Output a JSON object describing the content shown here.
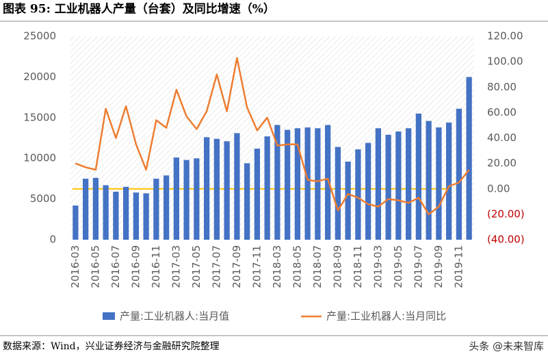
{
  "chart_data": {
    "type": "bar-line",
    "title": "图表 95: 工业机器人产量（台套）及同比增速（%）",
    "source": "数据来源：Wind，兴业证券经济与金融研究院整理",
    "watermark": "头条 @未来智库",
    "categories": [
      "2016-03",
      null,
      "2016-05",
      null,
      "2016-07",
      null,
      "2016-09",
      null,
      "2016-11",
      null,
      "2017-03",
      null,
      "2017-05",
      null,
      "2017-07",
      null,
      "2017-09",
      null,
      "2017-11",
      null,
      "2018-03",
      null,
      "2018-05",
      null,
      "2018-07",
      null,
      "2018-09",
      null,
      "2018-11",
      null,
      "2019-03",
      null,
      "2019-05",
      null,
      "2019-07",
      null,
      "2019-09",
      null,
      "2019-11",
      null
    ],
    "series": [
      {
        "name": "产量:工业机器人:当月值",
        "color": "#4472c4",
        "type": "bar",
        "axis": "y",
        "values": [
          4200,
          7500,
          7600,
          6700,
          5900,
          6500,
          5800,
          5700,
          7500,
          7900,
          10100,
          9800,
          10000,
          12600,
          12400,
          12100,
          13100,
          9400,
          11200,
          12700,
          14100,
          13500,
          13700,
          13800,
          13700,
          14100,
          11400,
          9600,
          11100,
          11900,
          13700,
          12900,
          13300,
          13700,
          15500,
          14600,
          13800,
          14400,
          16100,
          20000
        ]
      },
      {
        "name": "产量:工业机器人:当月同比",
        "color": "#ed7d31",
        "type": "line",
        "axis": "y2",
        "values": [
          20,
          17,
          15,
          63,
          40,
          65,
          35,
          15,
          54,
          48,
          78,
          57,
          47,
          61,
          90,
          61,
          103,
          64,
          46,
          56,
          34,
          35,
          35,
          7,
          6,
          8,
          -17,
          -4,
          -7,
          -12,
          -14,
          -8,
          -9,
          -11,
          -7,
          -20,
          -14,
          2,
          5,
          15
        ]
      }
    ],
    "ylim": [
      0,
      25000
    ],
    "yticks": [
      0,
      5000,
      10000,
      15000,
      20000,
      25000
    ],
    "y2lim": [
      -40,
      120
    ],
    "y2ticks": [
      {
        "value": -40,
        "label": "(40.00)"
      },
      {
        "value": -20,
        "label": "(20.00)"
      },
      {
        "value": 0,
        "label": "0.00"
      },
      {
        "value": 20,
        "label": "20.00"
      },
      {
        "value": 40,
        "label": "40.00"
      },
      {
        "value": 60,
        "label": "60.00"
      },
      {
        "value": 80,
        "label": "80.00"
      },
      {
        "value": 100,
        "label": "100.00"
      },
      {
        "value": 120,
        "label": "120.00"
      }
    ],
    "negative_tick_color": "#c00000",
    "zero_line_color": "#ffc000"
  }
}
